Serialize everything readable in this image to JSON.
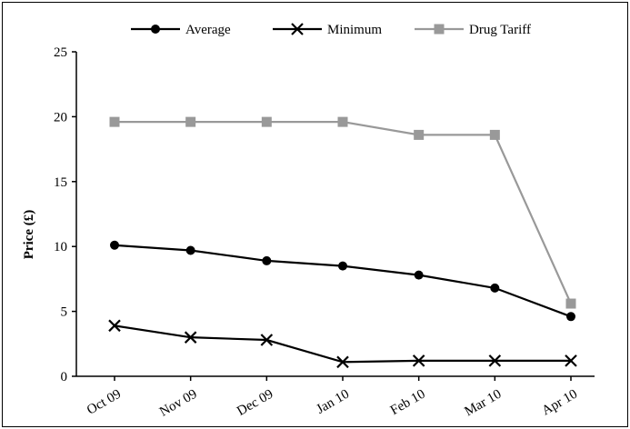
{
  "chart_data": {
    "type": "line",
    "title": "",
    "xlabel": "",
    "ylabel": "Price (£)",
    "categories": [
      "Oct 09",
      "Nov 09",
      "Dec 09",
      "Jan 10",
      "Feb 10",
      "Mar 10",
      "Apr 10"
    ],
    "ylim": [
      0,
      25
    ],
    "yticks": [
      0,
      5,
      10,
      15,
      20,
      25
    ],
    "grid": false,
    "legend_position": "top",
    "series": [
      {
        "name": "Average",
        "marker": "circle",
        "color": "#000000",
        "values": [
          10.1,
          9.7,
          8.9,
          8.5,
          7.8,
          6.8,
          4.6
        ]
      },
      {
        "name": "Minimum",
        "marker": "x",
        "color": "#000000",
        "values": [
          3.9,
          3.0,
          2.8,
          1.1,
          1.2,
          1.2,
          1.2
        ]
      },
      {
        "name": "Drug Tariff",
        "marker": "square",
        "color": "#999999",
        "values": [
          19.6,
          19.6,
          19.6,
          19.6,
          18.6,
          18.6,
          5.6
        ]
      }
    ]
  }
}
